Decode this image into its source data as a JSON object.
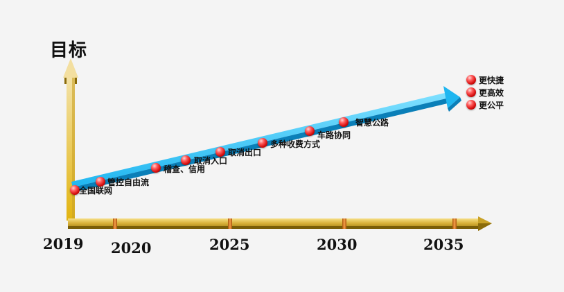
{
  "title": "目标",
  "years": [
    "2019",
    "2020",
    "2025",
    "2030",
    "2035"
  ],
  "milestones": [
    "全国联网",
    "管控自由流",
    "稽查、信用",
    "取消入口",
    "取消出口",
    "多种收费方式",
    "车路协同",
    "智慧公路"
  ],
  "goals": [
    "更快捷",
    "更高效",
    "更公平"
  ],
  "colors": {
    "arrow_blue": "#1fb6f0",
    "arrow_blue_dark": "#0a7fb8",
    "axis_gold": "#c9a227",
    "axis_gold_dark": "#8a6b0a",
    "tick_orange": "#e07a1a",
    "dot_red": "#e01818"
  }
}
